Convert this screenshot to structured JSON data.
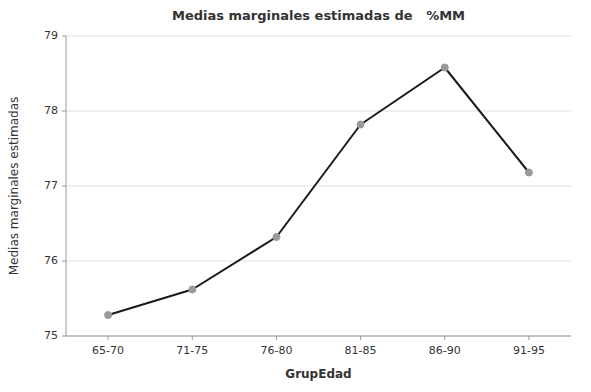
{
  "chart_data": {
    "type": "line",
    "title": "Medias marginales estimadas de   %MM",
    "x_label": "GrupEdad",
    "y_label": "Medias marginales estimadas",
    "categories": [
      "65-70",
      "71-75",
      "76-80",
      "81-85",
      "86-90",
      "91-95"
    ],
    "values": [
      75.28,
      75.62,
      76.32,
      77.82,
      78.58,
      77.18
    ],
    "color": "#1a1a1a",
    "marker": "circle",
    "ylim": [
      75.0,
      79.0
    ],
    "yticks": [
      75,
      76,
      77,
      78,
      79
    ],
    "grid": true
  }
}
